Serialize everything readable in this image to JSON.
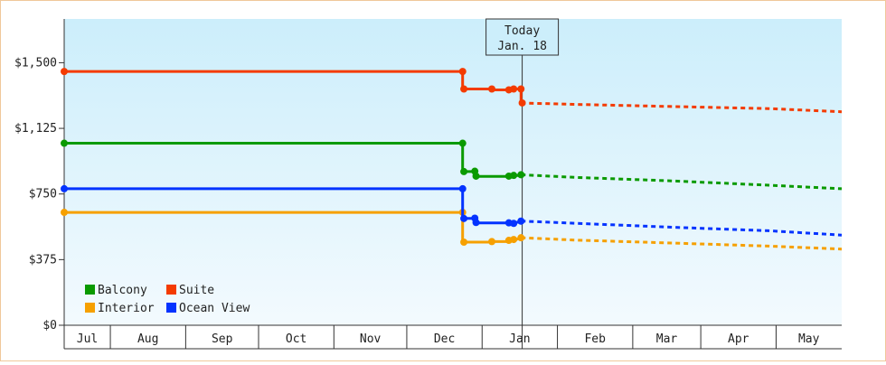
{
  "chart_data": {
    "type": "line",
    "title": "",
    "xlabel": "",
    "ylabel": "",
    "ylim": [
      0,
      1750
    ],
    "y_ticks": [
      0,
      375,
      750,
      1125,
      1500
    ],
    "y_tick_labels": [
      "$0",
      "$375",
      "$750",
      "$1,125",
      "$1,500"
    ],
    "x_month_labels": [
      "Jul",
      "Aug",
      "Sep",
      "Oct",
      "Nov",
      "Dec",
      "Jan",
      "Feb",
      "Mar",
      "Apr",
      "May"
    ],
    "x_range_days": [
      0,
      320
    ],
    "month_boundaries_days": [
      0,
      19,
      50,
      80,
      111,
      141,
      172,
      203,
      234,
      262,
      293,
      323
    ],
    "today": {
      "line1": "Today",
      "line2": "Jan. 18",
      "day": 188.5
    },
    "legend": {
      "placement": "bottom-left"
    },
    "grid": false,
    "series": [
      {
        "name": "Balcony",
        "color": "#0a9a00",
        "history": [
          [
            0,
            1040
          ],
          [
            164,
            1040
          ],
          [
            164,
            878
          ],
          [
            169,
            878
          ],
          [
            169,
            850
          ],
          [
            183,
            850
          ],
          [
            184.5,
            850
          ],
          [
            185.5,
            856
          ],
          [
            187,
            856
          ],
          [
            188,
            860
          ]
        ],
        "markers": [
          [
            0,
            1040
          ],
          [
            164,
            1040
          ],
          [
            164.5,
            878
          ],
          [
            169,
            880
          ],
          [
            169.5,
            852
          ],
          [
            183,
            852
          ],
          [
            185,
            856
          ],
          [
            188,
            860
          ]
        ],
        "forecast": [
          [
            188,
            860
          ],
          [
            210,
            845
          ],
          [
            250,
            825
          ],
          [
            290,
            800
          ],
          [
            320,
            780
          ]
        ]
      },
      {
        "name": "Suite",
        "color": "#f43b00",
        "history": [
          [
            0,
            1450
          ],
          [
            164,
            1450
          ],
          [
            164,
            1350
          ],
          [
            176,
            1350
          ],
          [
            176,
            1345
          ],
          [
            183,
            1345
          ],
          [
            185,
            1350
          ],
          [
            188,
            1350
          ],
          [
            188,
            1270
          ]
        ],
        "markers": [
          [
            0,
            1450
          ],
          [
            164,
            1450
          ],
          [
            164.5,
            1350
          ],
          [
            176,
            1350
          ],
          [
            183,
            1345
          ],
          [
            185,
            1350
          ],
          [
            188,
            1350
          ],
          [
            188.5,
            1270
          ]
        ],
        "forecast": [
          [
            188,
            1270
          ],
          [
            210,
            1262
          ],
          [
            250,
            1250
          ],
          [
            290,
            1238
          ],
          [
            320,
            1220
          ]
        ]
      },
      {
        "name": "Interior",
        "color": "#f6a000",
        "history": [
          [
            0,
            645
          ],
          [
            164,
            645
          ],
          [
            164,
            475
          ],
          [
            176,
            475
          ],
          [
            176,
            478
          ],
          [
            183,
            478
          ],
          [
            183,
            485
          ],
          [
            185,
            485
          ],
          [
            186,
            490
          ],
          [
            188,
            500
          ]
        ],
        "markers": [
          [
            0,
            645
          ],
          [
            164,
            645
          ],
          [
            164.5,
            475
          ],
          [
            176,
            478
          ],
          [
            183,
            485
          ],
          [
            185,
            490
          ],
          [
            188,
            500
          ]
        ],
        "forecast": [
          [
            188,
            500
          ],
          [
            210,
            487
          ],
          [
            250,
            470
          ],
          [
            290,
            452
          ],
          [
            320,
            435
          ]
        ]
      },
      {
        "name": "Ocean View",
        "color": "#0433ff",
        "history": [
          [
            0,
            780
          ],
          [
            164,
            780
          ],
          [
            164,
            610
          ],
          [
            169,
            610
          ],
          [
            169,
            585
          ],
          [
            183,
            585
          ],
          [
            185,
            582
          ],
          [
            188,
            595
          ]
        ],
        "markers": [
          [
            0,
            780
          ],
          [
            164,
            780
          ],
          [
            164.5,
            610
          ],
          [
            169,
            612
          ],
          [
            169.5,
            587
          ],
          [
            183,
            585
          ],
          [
            185,
            582
          ],
          [
            188,
            595
          ]
        ],
        "forecast": [
          [
            188,
            595
          ],
          [
            210,
            583
          ],
          [
            250,
            560
          ],
          [
            290,
            540
          ],
          [
            320,
            515
          ]
        ]
      }
    ]
  }
}
